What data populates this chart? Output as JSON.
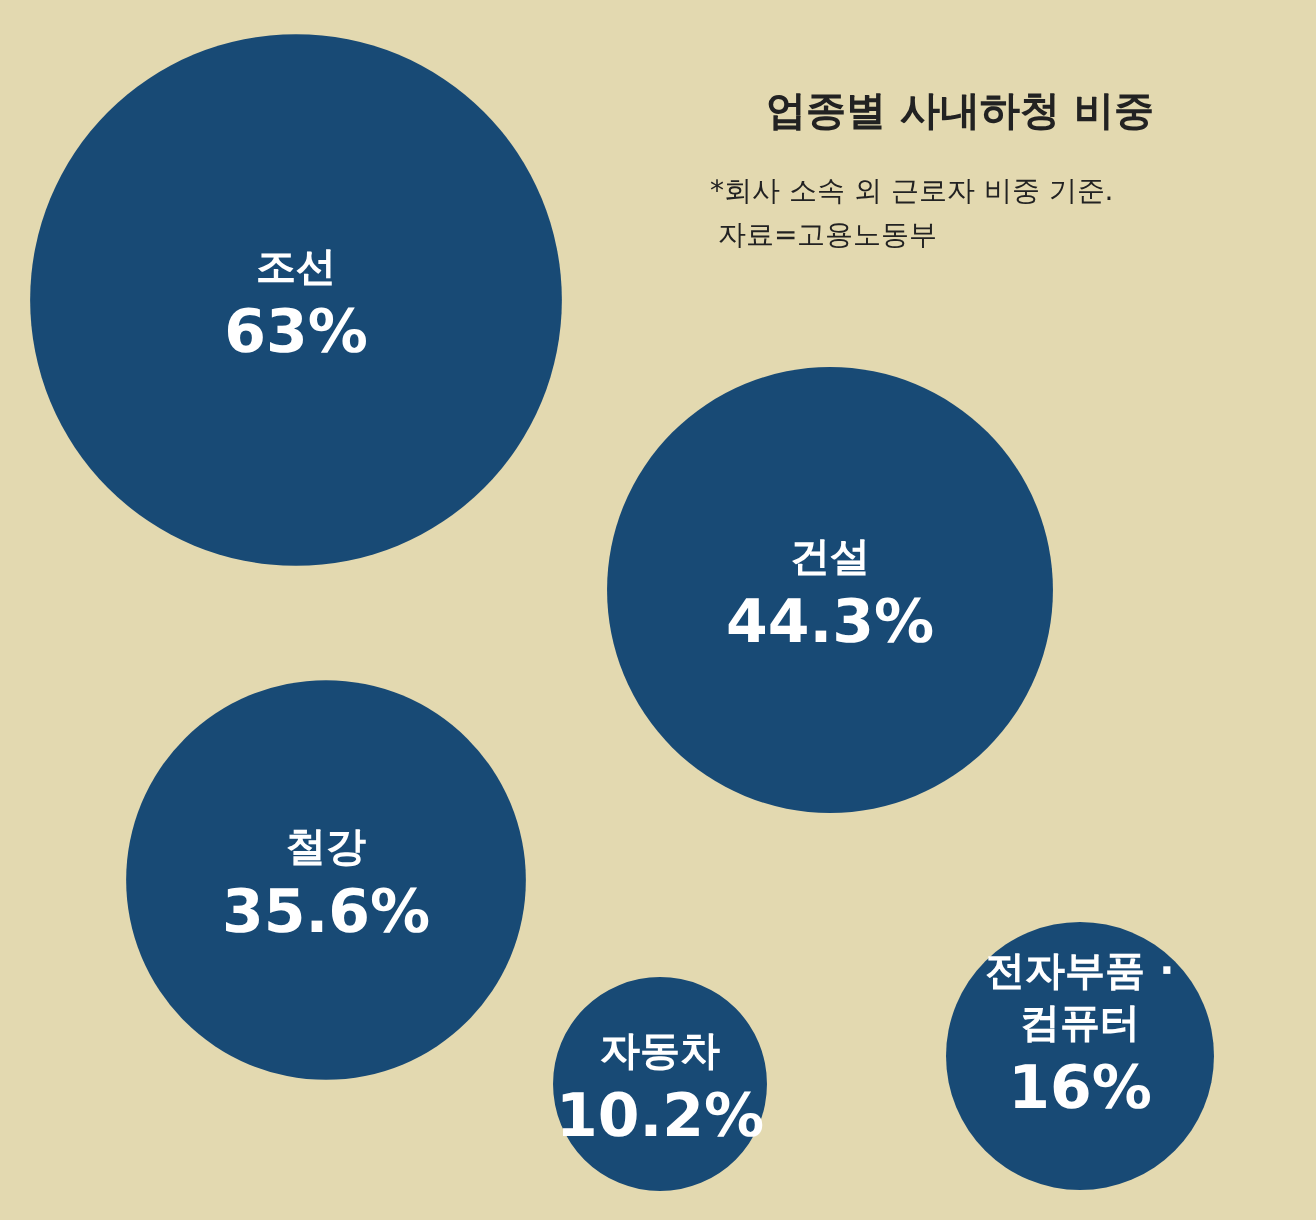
{
  "chart_data": {
    "type": "other",
    "title": "업종별 사내하청 비중",
    "annotations": [
      "*회사 소속 외 근로자 비중 기준.",
      "자료=고용노동부"
    ],
    "categories": [
      "조선",
      "건설",
      "철강",
      "자동차",
      "전자부품 ·\n컴퓨터"
    ],
    "values": [
      63,
      44.3,
      35.6,
      10.2,
      16
    ],
    "value_labels": [
      "63%",
      "44.3%",
      "35.6%",
      "10.2%",
      "16%"
    ],
    "color": "#184a75"
  }
}
